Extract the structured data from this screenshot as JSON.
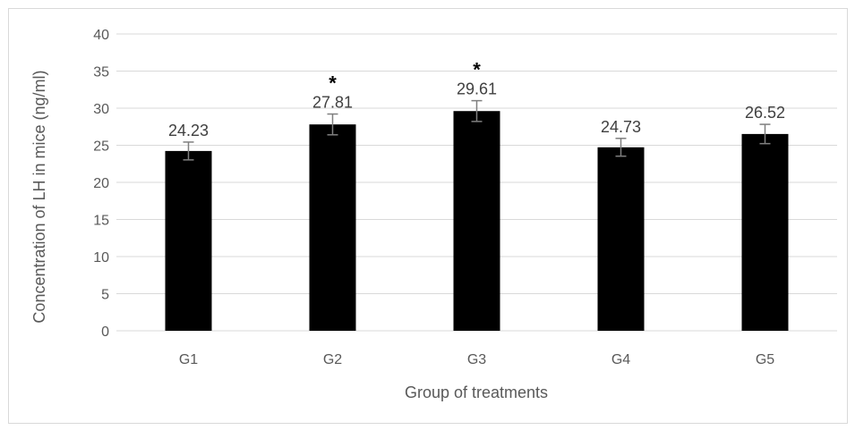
{
  "chart_data": {
    "type": "bar",
    "categories": [
      "G1",
      "G2",
      "G3",
      "G4",
      "G5"
    ],
    "values": [
      24.23,
      27.81,
      29.61,
      24.73,
      26.52
    ],
    "data_labels": [
      "24.23",
      "27.81",
      "29.61",
      "24.73",
      "26.52"
    ],
    "error": [
      1.2,
      1.4,
      1.4,
      1.2,
      1.3
    ],
    "significance": [
      "",
      "*",
      "*",
      "",
      ""
    ],
    "xlabel": "Group of treatments",
    "ylabel": "Concentration of LH in mice (ng/ml)",
    "ylim": [
      0,
      40
    ],
    "yticks": [
      0,
      5,
      10,
      15,
      20,
      25,
      30,
      35,
      40
    ],
    "ytick_labels": [
      "0",
      "5",
      "10",
      "15",
      "20",
      "25",
      "30",
      "35",
      "40"
    ],
    "grid": true,
    "legend": "none",
    "bar_color": "#000000",
    "grid_color": "#d9d9d9",
    "error_bar_color": "#7f7f7f"
  }
}
